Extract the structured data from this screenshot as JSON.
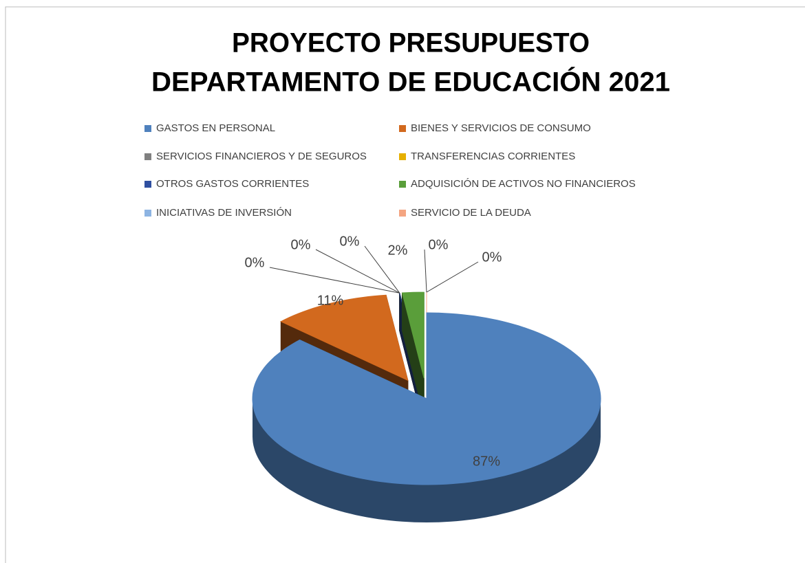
{
  "chart_data": {
    "type": "pie",
    "title": [
      "PROYECTO PRESUPUESTO",
      "DEPARTAMENTO DE EDUCACIÓN 2021"
    ],
    "categories": [
      "GASTOS EN PERSONAL",
      "BIENES Y SERVICIOS DE CONSUMO",
      "SERVICIOS FINANCIEROS Y DE SEGUROS",
      "TRANSFERENCIAS CORRIENTES",
      "OTROS GASTOS CORRIENTES",
      "ADQUISICIÓN DE ACTIVOS NO FINANCIEROS",
      "INICIATIVAS DE INVERSIÓN",
      "SERVICIO DE LA DEUDA"
    ],
    "values": [
      87,
      11,
      0,
      0,
      0,
      2,
      0,
      0
    ],
    "value_labels": [
      "87%",
      "11%",
      "0%",
      "0%",
      "0%",
      "2%",
      "0%",
      "0%"
    ],
    "colors": [
      "#4f81bd",
      "#d2691e",
      "#808080",
      "#e6b000",
      "#2f4fa0",
      "#5a9e3a",
      "#8db4e2",
      "#f4a582"
    ],
    "legend": "top"
  }
}
